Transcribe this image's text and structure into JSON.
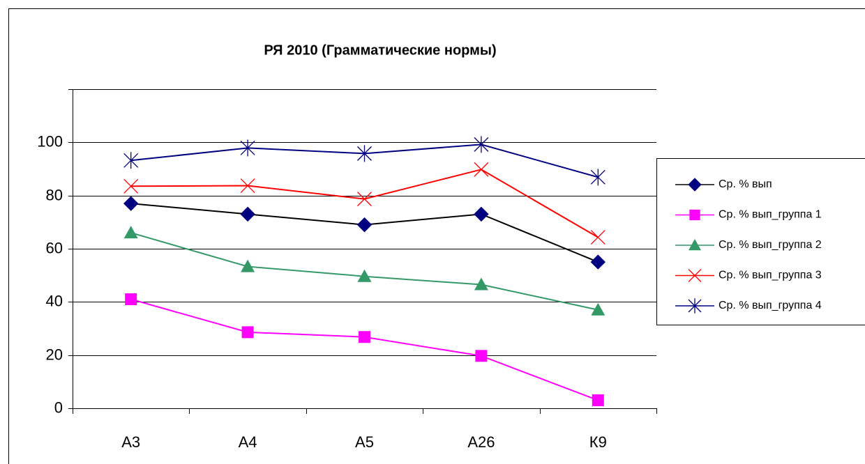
{
  "chart_data": {
    "type": "line",
    "title": "РЯ 2010 (Грамматические нормы)",
    "categories": [
      "А3",
      "А4",
      "А5",
      "А26",
      "К9"
    ],
    "series": [
      {
        "name": "Ср. % вып",
        "color": "#000080",
        "line_color": "#000000",
        "marker": "diamond",
        "values": [
          77,
          73,
          69,
          73,
          55
        ]
      },
      {
        "name": "Ср. % вып_группа 1",
        "color": "#ff00ff",
        "line_color": "#ff00ff",
        "marker": "square",
        "values": [
          41,
          28.6,
          26.8,
          19.7,
          3
        ]
      },
      {
        "name": "Ср. % вып_группа 2",
        "color": "#339966",
        "line_color": "#339966",
        "marker": "triangle",
        "values": [
          66,
          53.3,
          49.6,
          46.5,
          37
        ]
      },
      {
        "name": "Ср. % вып_группа 3",
        "color": "#ff0000",
        "line_color": "#ff0000",
        "marker": "x",
        "values": [
          83.5,
          83.7,
          78.7,
          89.8,
          64.3
        ]
      },
      {
        "name": "Ср. % вып_группа 4",
        "color": "#000080",
        "line_color": "#000080",
        "marker": "star",
        "values": [
          93.2,
          97.9,
          95.8,
          99.2,
          86.9
        ]
      }
    ],
    "ylim": [
      0,
      120
    ],
    "yticks": [
      0,
      20,
      40,
      60,
      80,
      100
    ],
    "grid": true,
    "legend": "right"
  }
}
